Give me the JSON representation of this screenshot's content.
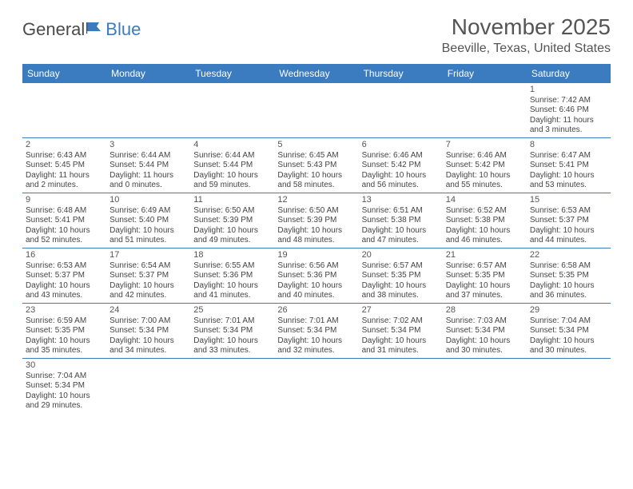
{
  "logo": {
    "text1": "General",
    "text2": "Blue"
  },
  "title": "November 2025",
  "location": "Beeville, Texas, United States",
  "colors": {
    "header_bg": "#3b7bbf",
    "header_text": "#ffffff",
    "border": "#3b7bbf",
    "body_text": "#444444",
    "title_text": "#555555"
  },
  "day_headers": [
    "Sunday",
    "Monday",
    "Tuesday",
    "Wednesday",
    "Thursday",
    "Friday",
    "Saturday"
  ],
  "weeks": [
    [
      null,
      null,
      null,
      null,
      null,
      null,
      {
        "n": "1",
        "sr": "Sunrise: 7:42 AM",
        "ss": "Sunset: 6:46 PM",
        "d1": "Daylight: 11 hours",
        "d2": "and 3 minutes."
      }
    ],
    [
      {
        "n": "2",
        "sr": "Sunrise: 6:43 AM",
        "ss": "Sunset: 5:45 PM",
        "d1": "Daylight: 11 hours",
        "d2": "and 2 minutes."
      },
      {
        "n": "3",
        "sr": "Sunrise: 6:44 AM",
        "ss": "Sunset: 5:44 PM",
        "d1": "Daylight: 11 hours",
        "d2": "and 0 minutes."
      },
      {
        "n": "4",
        "sr": "Sunrise: 6:44 AM",
        "ss": "Sunset: 5:44 PM",
        "d1": "Daylight: 10 hours",
        "d2": "and 59 minutes."
      },
      {
        "n": "5",
        "sr": "Sunrise: 6:45 AM",
        "ss": "Sunset: 5:43 PM",
        "d1": "Daylight: 10 hours",
        "d2": "and 58 minutes."
      },
      {
        "n": "6",
        "sr": "Sunrise: 6:46 AM",
        "ss": "Sunset: 5:42 PM",
        "d1": "Daylight: 10 hours",
        "d2": "and 56 minutes."
      },
      {
        "n": "7",
        "sr": "Sunrise: 6:46 AM",
        "ss": "Sunset: 5:42 PM",
        "d1": "Daylight: 10 hours",
        "d2": "and 55 minutes."
      },
      {
        "n": "8",
        "sr": "Sunrise: 6:47 AM",
        "ss": "Sunset: 5:41 PM",
        "d1": "Daylight: 10 hours",
        "d2": "and 53 minutes."
      }
    ],
    [
      {
        "n": "9",
        "sr": "Sunrise: 6:48 AM",
        "ss": "Sunset: 5:41 PM",
        "d1": "Daylight: 10 hours",
        "d2": "and 52 minutes."
      },
      {
        "n": "10",
        "sr": "Sunrise: 6:49 AM",
        "ss": "Sunset: 5:40 PM",
        "d1": "Daylight: 10 hours",
        "d2": "and 51 minutes."
      },
      {
        "n": "11",
        "sr": "Sunrise: 6:50 AM",
        "ss": "Sunset: 5:39 PM",
        "d1": "Daylight: 10 hours",
        "d2": "and 49 minutes."
      },
      {
        "n": "12",
        "sr": "Sunrise: 6:50 AM",
        "ss": "Sunset: 5:39 PM",
        "d1": "Daylight: 10 hours",
        "d2": "and 48 minutes."
      },
      {
        "n": "13",
        "sr": "Sunrise: 6:51 AM",
        "ss": "Sunset: 5:38 PM",
        "d1": "Daylight: 10 hours",
        "d2": "and 47 minutes."
      },
      {
        "n": "14",
        "sr": "Sunrise: 6:52 AM",
        "ss": "Sunset: 5:38 PM",
        "d1": "Daylight: 10 hours",
        "d2": "and 46 minutes."
      },
      {
        "n": "15",
        "sr": "Sunrise: 6:53 AM",
        "ss": "Sunset: 5:37 PM",
        "d1": "Daylight: 10 hours",
        "d2": "and 44 minutes."
      }
    ],
    [
      {
        "n": "16",
        "sr": "Sunrise: 6:53 AM",
        "ss": "Sunset: 5:37 PM",
        "d1": "Daylight: 10 hours",
        "d2": "and 43 minutes."
      },
      {
        "n": "17",
        "sr": "Sunrise: 6:54 AM",
        "ss": "Sunset: 5:37 PM",
        "d1": "Daylight: 10 hours",
        "d2": "and 42 minutes."
      },
      {
        "n": "18",
        "sr": "Sunrise: 6:55 AM",
        "ss": "Sunset: 5:36 PM",
        "d1": "Daylight: 10 hours",
        "d2": "and 41 minutes."
      },
      {
        "n": "19",
        "sr": "Sunrise: 6:56 AM",
        "ss": "Sunset: 5:36 PM",
        "d1": "Daylight: 10 hours",
        "d2": "and 40 minutes."
      },
      {
        "n": "20",
        "sr": "Sunrise: 6:57 AM",
        "ss": "Sunset: 5:35 PM",
        "d1": "Daylight: 10 hours",
        "d2": "and 38 minutes."
      },
      {
        "n": "21",
        "sr": "Sunrise: 6:57 AM",
        "ss": "Sunset: 5:35 PM",
        "d1": "Daylight: 10 hours",
        "d2": "and 37 minutes."
      },
      {
        "n": "22",
        "sr": "Sunrise: 6:58 AM",
        "ss": "Sunset: 5:35 PM",
        "d1": "Daylight: 10 hours",
        "d2": "and 36 minutes."
      }
    ],
    [
      {
        "n": "23",
        "sr": "Sunrise: 6:59 AM",
        "ss": "Sunset: 5:35 PM",
        "d1": "Daylight: 10 hours",
        "d2": "and 35 minutes."
      },
      {
        "n": "24",
        "sr": "Sunrise: 7:00 AM",
        "ss": "Sunset: 5:34 PM",
        "d1": "Daylight: 10 hours",
        "d2": "and 34 minutes."
      },
      {
        "n": "25",
        "sr": "Sunrise: 7:01 AM",
        "ss": "Sunset: 5:34 PM",
        "d1": "Daylight: 10 hours",
        "d2": "and 33 minutes."
      },
      {
        "n": "26",
        "sr": "Sunrise: 7:01 AM",
        "ss": "Sunset: 5:34 PM",
        "d1": "Daylight: 10 hours",
        "d2": "and 32 minutes."
      },
      {
        "n": "27",
        "sr": "Sunrise: 7:02 AM",
        "ss": "Sunset: 5:34 PM",
        "d1": "Daylight: 10 hours",
        "d2": "and 31 minutes."
      },
      {
        "n": "28",
        "sr": "Sunrise: 7:03 AM",
        "ss": "Sunset: 5:34 PM",
        "d1": "Daylight: 10 hours",
        "d2": "and 30 minutes."
      },
      {
        "n": "29",
        "sr": "Sunrise: 7:04 AM",
        "ss": "Sunset: 5:34 PM",
        "d1": "Daylight: 10 hours",
        "d2": "and 30 minutes."
      }
    ],
    [
      {
        "n": "30",
        "sr": "Sunrise: 7:04 AM",
        "ss": "Sunset: 5:34 PM",
        "d1": "Daylight: 10 hours",
        "d2": "and 29 minutes."
      },
      null,
      null,
      null,
      null,
      null,
      null
    ]
  ]
}
